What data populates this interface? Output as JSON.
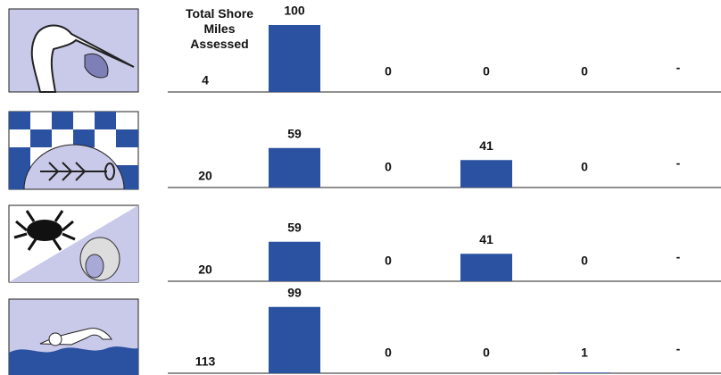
{
  "chart_data": {
    "type": "bar",
    "total_label": "Total Shore Miles Assessed",
    "color": "#2b51a1",
    "ylim": [
      0,
      100
    ],
    "rows": [
      {
        "total": 4,
        "values": [
          100,
          0,
          0,
          0
        ],
        "extra": "-"
      },
      {
        "total": 20,
        "values": [
          59,
          0,
          41,
          0
        ],
        "extra": "-"
      },
      {
        "total": 20,
        "values": [
          59,
          0,
          41,
          0
        ],
        "extra": "-"
      },
      {
        "total": 113,
        "values": [
          99,
          0,
          0,
          1
        ],
        "extra": "-"
      }
    ]
  }
}
